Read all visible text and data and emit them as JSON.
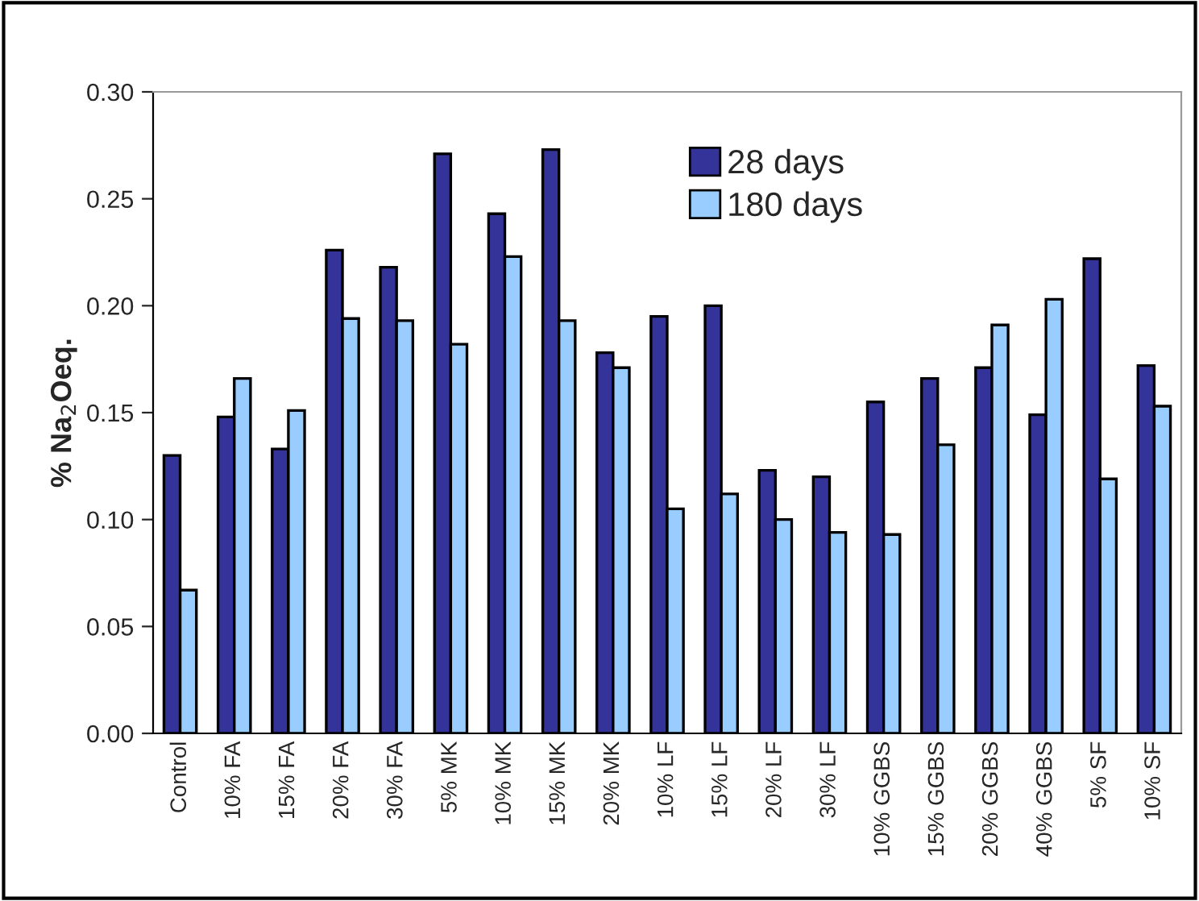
{
  "chart_data": {
    "type": "bar",
    "ylabel": "% Na$_{2}$Oeq.",
    "categories": [
      "Control",
      "10% FA",
      "15% FA",
      "20% FA",
      "30% FA",
      "5% MK",
      "10% MK",
      "15% MK",
      "20% MK",
      "10% LF",
      "15% LF",
      "20% LF",
      "30% LF",
      "10% GGBS",
      "15% GGBS",
      "20% GGBS",
      "40% GGBS",
      "5% SF",
      "10% SF"
    ],
    "series": [
      {
        "name": "28 days",
        "color": "#333399",
        "values": [
          0.13,
          0.148,
          0.133,
          0.226,
          0.218,
          0.271,
          0.243,
          0.273,
          0.178,
          0.195,
          0.2,
          0.123,
          0.12,
          0.155,
          0.166,
          0.171,
          0.149,
          0.222,
          0.172
        ]
      },
      {
        "name": "180 days",
        "color": "#99ccff",
        "values": [
          0.067,
          0.166,
          0.151,
          0.194,
          0.193,
          0.182,
          0.223,
          0.193,
          0.171,
          0.105,
          0.112,
          0.1,
          0.094,
          0.093,
          0.135,
          0.191,
          0.203,
          0.119,
          0.153
        ]
      }
    ],
    "ylim": [
      0,
      0.3
    ],
    "yticks": [
      {
        "value": 0,
        "label": "0.00"
      },
      {
        "value": 0.05,
        "label": "0.05"
      },
      {
        "value": 0.1,
        "label": "0.10"
      },
      {
        "value": 0.15,
        "label": "0.15"
      },
      {
        "value": 0.2,
        "label": "0.20"
      },
      {
        "value": 0.25,
        "label": "0.25"
      },
      {
        "value": 0.3,
        "label": "0.30"
      }
    ],
    "legend": "top right",
    "grid": false
  }
}
